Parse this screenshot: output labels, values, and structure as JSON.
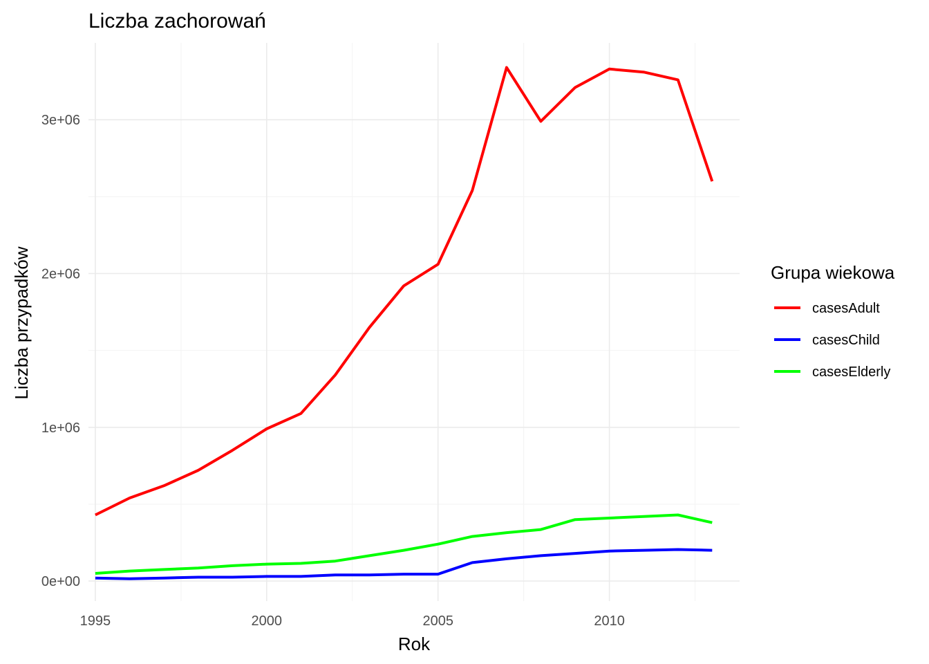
{
  "chart_data": {
    "type": "line",
    "title": "Liczba zachorowań",
    "xlabel": "Rok",
    "ylabel": "Liczba przypadków",
    "xlim": [
      1994.8,
      2013.8
    ],
    "ylim": [
      -130000,
      3500000
    ],
    "x_ticks": [
      1995,
      2000,
      2005,
      2010
    ],
    "x_tick_labels": [
      "1995",
      "2000",
      "2005",
      "2010"
    ],
    "y_ticks": [
      0,
      1000000,
      2000000,
      3000000
    ],
    "y_tick_labels": [
      "0e+00",
      "1e+06",
      "2e+06",
      "3e+06"
    ],
    "grid": true,
    "legend": {
      "title": "Grupa wiekowa",
      "position": "right"
    },
    "x": [
      1995,
      1996,
      1997,
      1998,
      1999,
      2000,
      2001,
      2002,
      2003,
      2004,
      2005,
      2006,
      2007,
      2008,
      2009,
      2010,
      2011,
      2012,
      2013
    ],
    "series": [
      {
        "name": "casesAdult",
        "color": "#ff0000",
        "values": [
          430000,
          540000,
          620000,
          720000,
          850000,
          990000,
          1090000,
          1340000,
          1650000,
          1920000,
          2060000,
          2540000,
          3340000,
          2990000,
          3210000,
          3330000,
          3310000,
          3260000,
          2600000
        ]
      },
      {
        "name": "casesChild",
        "color": "#0000ff",
        "values": [
          20000,
          15000,
          20000,
          25000,
          25000,
          30000,
          30000,
          40000,
          40000,
          45000,
          45000,
          120000,
          145000,
          165000,
          180000,
          195000,
          200000,
          205000,
          200000
        ]
      },
      {
        "name": "casesElderly",
        "color": "#00ff00",
        "values": [
          50000,
          65000,
          75000,
          85000,
          100000,
          110000,
          115000,
          130000,
          165000,
          200000,
          240000,
          290000,
          315000,
          335000,
          400000,
          410000,
          420000,
          430000,
          380000
        ]
      }
    ]
  }
}
